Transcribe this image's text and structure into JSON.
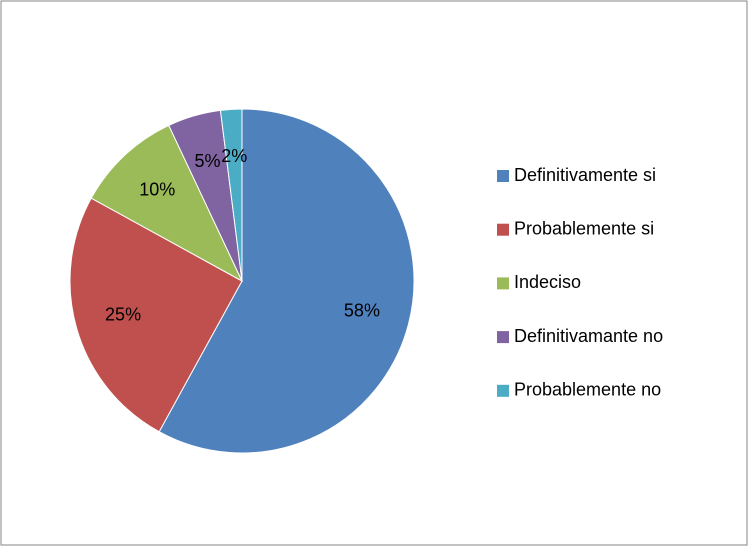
{
  "chart_data": {
    "type": "pie",
    "categories": [
      "Definitivamente si",
      "Probablemente si",
      "Indeciso",
      "Definitivamante no",
      "Probablemente no"
    ],
    "values": [
      58,
      25,
      10,
      5,
      2
    ],
    "value_labels": [
      "58%",
      "25%",
      "10%",
      "5%",
      "2%"
    ],
    "colors": [
      "#4f81bd",
      "#c0504d",
      "#9bbb59",
      "#8064a2",
      "#4bacc6"
    ],
    "legend": "right"
  }
}
